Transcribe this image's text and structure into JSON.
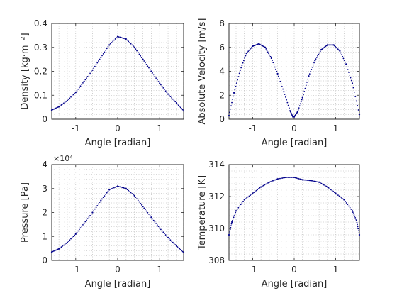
{
  "colors": {
    "marker": "#00008B",
    "axis": "#262626",
    "grid": "#b0b0b0"
  },
  "chart_data": [
    {
      "type": "scatter",
      "title": "",
      "xlabel": "Angle [radian]",
      "ylabel": "Density [kg·m⁻²]",
      "xlim": [
        -1.5708,
        1.5708
      ],
      "ylim": [
        0,
        0.4
      ],
      "xticks": [
        -1,
        0,
        1
      ],
      "xtick_labels": [
        "-1",
        "0",
        "1"
      ],
      "yticks": [
        0,
        0.1,
        0.2,
        0.3,
        0.4
      ],
      "ytick_labels": [
        "0",
        "0.1",
        "0.2",
        "0.3",
        "0.4"
      ],
      "grid": true,
      "minor_grid": true,
      "y_multiplier": "",
      "series": [
        {
          "x": [
            -1.5708,
            -1.4,
            -1.2,
            -1.0,
            -0.8,
            -0.6,
            -0.4,
            -0.2,
            0,
            0.2,
            0.4,
            0.6,
            0.8,
            1.0,
            1.2,
            1.4,
            1.5708
          ],
          "y": [
            0.038,
            0.052,
            0.078,
            0.112,
            0.158,
            0.205,
            0.258,
            0.31,
            0.345,
            0.335,
            0.3,
            0.25,
            0.2,
            0.15,
            0.105,
            0.068,
            0.035
          ]
        }
      ]
    },
    {
      "type": "scatter",
      "title": "",
      "xlabel": "Angle [radian]",
      "ylabel": "Absolute Velocity [m/s]",
      "xlim": [
        -1.5708,
        1.5708
      ],
      "ylim": [
        0,
        8
      ],
      "xticks": [
        -1,
        0,
        1
      ],
      "xtick_labels": [
        "-1",
        "0",
        "1"
      ],
      "yticks": [
        0,
        2,
        4,
        6,
        8
      ],
      "ytick_labels": [
        "0",
        "2",
        "4",
        "6",
        "8"
      ],
      "grid": true,
      "minor_grid": true,
      "y_multiplier": "",
      "series": [
        {
          "x": [
            -1.5708,
            -1.45,
            -1.3,
            -1.15,
            -1.0,
            -0.85,
            -0.7,
            -0.55,
            -0.4,
            -0.25,
            -0.1,
            -0.03,
            0,
            0.08,
            0.2,
            0.35,
            0.5,
            0.65,
            0.8,
            0.95,
            1.1,
            1.25,
            1.4,
            1.5708
          ],
          "y": [
            0.3,
            2.2,
            4.1,
            5.5,
            6.1,
            6.3,
            6.0,
            5.1,
            3.8,
            2.3,
            0.7,
            0.2,
            0.2,
            0.6,
            1.8,
            3.6,
            4.9,
            5.8,
            6.2,
            6.2,
            5.7,
            4.6,
            3.0,
            0.4
          ]
        }
      ]
    },
    {
      "type": "scatter",
      "title": "",
      "xlabel": "Angle [radian]",
      "ylabel": "Pressure [Pa]",
      "xlim": [
        -1.5708,
        1.5708
      ],
      "ylim": [
        0,
        40000
      ],
      "xticks": [
        -1,
        0,
        1
      ],
      "xtick_labels": [
        "-1",
        "0",
        "1"
      ],
      "yticks": [
        0,
        10000,
        20000,
        30000,
        40000
      ],
      "ytick_labels": [
        "0",
        "1",
        "2",
        "3",
        "4"
      ],
      "grid": true,
      "minor_grid": true,
      "y_multiplier": "×10⁴",
      "series": [
        {
          "x": [
            -1.5708,
            -1.4,
            -1.2,
            -1.0,
            -0.8,
            -0.6,
            -0.4,
            -0.2,
            0,
            0.2,
            0.4,
            0.6,
            0.8,
            1.0,
            1.2,
            1.4,
            1.5708
          ],
          "y": [
            3500,
            4800,
            7500,
            11000,
            15500,
            20000,
            25000,
            29500,
            31000,
            30000,
            27000,
            22500,
            18000,
            13500,
            9500,
            6000,
            3300
          ]
        }
      ]
    },
    {
      "type": "scatter",
      "title": "",
      "xlabel": "Angle [radian]",
      "ylabel": "Temperature [K]",
      "xlim": [
        -1.5708,
        1.5708
      ],
      "ylim": [
        308,
        314
      ],
      "xticks": [
        -1,
        0,
        1
      ],
      "xtick_labels": [
        "-1",
        "0",
        "1"
      ],
      "yticks": [
        308,
        310,
        312,
        314
      ],
      "ytick_labels": [
        "308",
        "310",
        "312",
        "314"
      ],
      "grid": true,
      "minor_grid": true,
      "y_multiplier": "",
      "series": [
        {
          "x": [
            -1.5708,
            -1.5,
            -1.4,
            -1.2,
            -1.0,
            -0.8,
            -0.6,
            -0.4,
            -0.2,
            0,
            0.2,
            0.4,
            0.6,
            0.8,
            1.0,
            1.2,
            1.4,
            1.5,
            1.5708
          ],
          "y": [
            309.6,
            310.4,
            311.1,
            311.8,
            312.2,
            312.6,
            312.9,
            313.1,
            313.2,
            313.2,
            313.05,
            313.0,
            312.9,
            312.6,
            312.2,
            311.8,
            311.1,
            310.5,
            309.6
          ]
        }
      ]
    }
  ]
}
